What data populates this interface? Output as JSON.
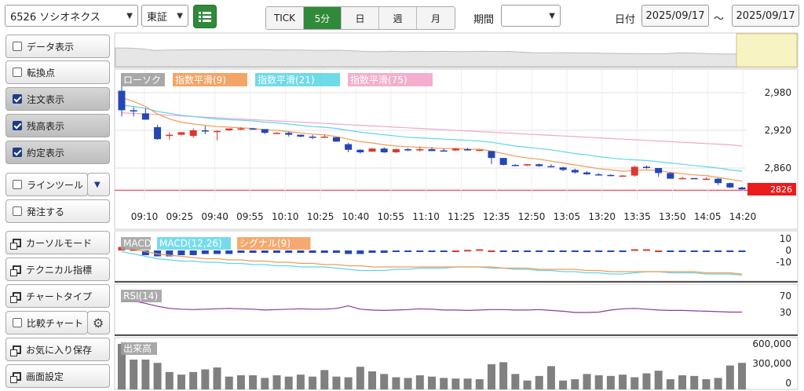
{
  "header": {
    "stock_select": "6526 ソシオネクス",
    "market_select": "東証",
    "list_icon": "list-icon",
    "period_tabs": [
      "TICK",
      "5分",
      "日",
      "週",
      "月"
    ],
    "active_tab": 1,
    "period_label": "期間",
    "period_select": "",
    "date_label": "日付",
    "date_from": "2025/09/17",
    "date_sep": "〜",
    "date_to": "2025/09/17"
  },
  "sidebar": {
    "data_display": "データ表示",
    "turning_point": "転換点",
    "order_display": "注文表示",
    "position_display": "残高表示",
    "execution_display": "約定表示",
    "line_tool": "ラインツール",
    "place_order": "発注する",
    "cursor_mode": "カーソルモード",
    "technical": "テクニカル指標",
    "chart_type": "チャートタイプ",
    "compare_chart": "比較チャート",
    "save_favorite": "お気に入り保存",
    "screen_settings": "画面設定"
  },
  "main_chart": {
    "legend": [
      "ローソク",
      "指数平滑(9)",
      "指数平滑(21)",
      "指数平滑(75)"
    ],
    "legend_colors": [
      "#9e9e9e",
      "#f39a57",
      "#5fd6e6",
      "#f2a6c8"
    ],
    "y_ticks": [
      "2,980",
      "2,920",
      "2,860"
    ],
    "last_price": "2826",
    "x_ticks": [
      "09:10",
      "09:25",
      "09:40",
      "09:55",
      "10:10",
      "10:25",
      "10:40",
      "10:55",
      "11:10",
      "11:25",
      "12:35",
      "12:50",
      "13:05",
      "13:20",
      "13:35",
      "13:50",
      "14:05",
      "14:20"
    ]
  },
  "macd": {
    "legend": [
      "MACD",
      "MACD(12,26)",
      "シグナル(9)"
    ],
    "y_ticks": [
      "10",
      "0",
      "-10"
    ]
  },
  "rsi": {
    "legend": "RSI(14)",
    "y_ticks": [
      "70",
      "30"
    ]
  },
  "volume": {
    "legend": "出来高",
    "y_ticks": [
      "600,000",
      "300,000",
      "0"
    ]
  },
  "chart_data": {
    "type": "candlestick",
    "candles": [
      [
        2983,
        2998,
        2942,
        2952
      ],
      [
        2952,
        2957,
        2942,
        2950
      ],
      [
        2947,
        2955,
        2937,
        2937
      ],
      [
        2925,
        2929,
        2905,
        2906
      ],
      [
        2911,
        2917,
        2905,
        2913
      ],
      [
        2913,
        2917,
        2912,
        2917
      ],
      [
        2911,
        2923,
        2908,
        2920
      ],
      [
        2920,
        2927,
        2914,
        2919
      ],
      [
        2919,
        2920,
        2904,
        2919
      ],
      [
        2920,
        2923,
        2919,
        2923
      ],
      [
        2923,
        2925,
        2920,
        2923
      ],
      [
        2923,
        2924,
        2921,
        2922
      ],
      [
        2922,
        2922,
        2914,
        2916
      ],
      [
        2916,
        2917,
        2915,
        2916
      ],
      [
        2916,
        2918,
        2910,
        2913
      ],
      [
        2913,
        2913,
        2909,
        2910
      ],
      [
        2910,
        2913,
        2906,
        2909
      ],
      [
        2909,
        2913,
        2908,
        2910
      ],
      [
        2909,
        2909,
        2902,
        2902
      ],
      [
        2898,
        2900,
        2885,
        2889
      ],
      [
        2889,
        2890,
        2883,
        2885
      ],
      [
        2886,
        2892,
        2886,
        2891
      ],
      [
        2891,
        2893,
        2884,
        2885
      ],
      [
        2885,
        2891,
        2884,
        2890
      ],
      [
        2890,
        2892,
        2887,
        2888
      ],
      [
        2888,
        2894,
        2886,
        2890
      ],
      [
        2890,
        2893,
        2887,
        2887
      ],
      [
        2888,
        2891,
        2887,
        2887
      ],
      [
        2888,
        2891,
        2887,
        2891
      ],
      [
        2890,
        2892,
        2888,
        2888
      ],
      [
        2888,
        2889,
        2887,
        2889
      ],
      [
        2887,
        2886,
        2866,
        2876
      ],
      [
        2876,
        2876,
        2864,
        2865
      ],
      [
        2865,
        2866,
        2863,
        2864
      ],
      [
        2864,
        2866,
        2863,
        2866
      ],
      [
        2866,
        2867,
        2862,
        2863
      ],
      [
        2863,
        2866,
        2861,
        2862
      ],
      [
        2861,
        2862,
        2855,
        2857
      ],
      [
        2857,
        2859,
        2851,
        2853
      ],
      [
        2853,
        2855,
        2849,
        2850
      ],
      [
        2850,
        2852,
        2848,
        2849
      ],
      [
        2849,
        2850,
        2847,
        2848
      ],
      [
        2848,
        2849,
        2846,
        2848
      ],
      [
        2848,
        2864,
        2846,
        2862
      ],
      [
        2862,
        2864,
        2859,
        2860
      ],
      [
        2860,
        2860,
        2846,
        2852
      ],
      [
        2852,
        2853,
        2843,
        2843
      ],
      [
        2843,
        2846,
        2842,
        2844
      ],
      [
        2844,
        2844,
        2843,
        2843
      ],
      [
        2843,
        2845,
        2842,
        2843
      ],
      [
        2843,
        2844,
        2833,
        2836
      ],
      [
        2836,
        2837,
        2828,
        2829
      ],
      [
        2829,
        2830,
        2825,
        2826
      ]
    ],
    "ema9": [
      2972,
      2966,
      2958,
      2946,
      2938,
      2933,
      2930,
      2928,
      2926,
      2925,
      2924,
      2923,
      2921,
      2920,
      2918,
      2916,
      2914,
      2913,
      2910,
      2906,
      2902,
      2900,
      2897,
      2895,
      2894,
      2893,
      2892,
      2891,
      2891,
      2890,
      2890,
      2887,
      2883,
      2879,
      2876,
      2874,
      2871,
      2868,
      2865,
      2862,
      2859,
      2857,
      2855,
      2856,
      2857,
      2856,
      2853,
      2851,
      2849,
      2848,
      2845,
      2842,
      2839
    ],
    "ema21": [
      2960,
      2958,
      2955,
      2950,
      2947,
      2944,
      2942,
      2940,
      2938,
      2937,
      2936,
      2935,
      2933,
      2932,
      2930,
      2928,
      2926,
      2925,
      2923,
      2920,
      2917,
      2915,
      2913,
      2911,
      2909,
      2908,
      2907,
      2906,
      2905,
      2904,
      2903,
      2901,
      2898,
      2895,
      2893,
      2891,
      2889,
      2886,
      2883,
      2881,
      2878,
      2876,
      2874,
      2873,
      2872,
      2870,
      2868,
      2866,
      2864,
      2862,
      2860,
      2857,
      2855
    ],
    "ema75": [
      2948,
      2947,
      2946,
      2945,
      2944,
      2943,
      2942,
      2941,
      2940,
      2939,
      2938,
      2937,
      2936,
      2935,
      2934,
      2933,
      2932,
      2931,
      2930,
      2929,
      2928,
      2927,
      2926,
      2925,
      2924,
      2923,
      2922,
      2921,
      2920,
      2919,
      2918,
      2917,
      2916,
      2915,
      2914,
      2913,
      2912,
      2911,
      2910,
      2909,
      2908,
      2907,
      2906,
      2905,
      2904,
      2903,
      2902,
      2901,
      2900,
      2899,
      2898,
      2897,
      2895
    ],
    "macd_hist": [
      3,
      1,
      -4,
      -5,
      -5,
      -4,
      -4,
      -3,
      -3,
      -3,
      -2,
      -2,
      -2,
      -2,
      -2,
      -2,
      -2,
      -2,
      -2,
      -3,
      -3,
      -2,
      -2,
      -1,
      -1,
      -1,
      -1,
      -1,
      0,
      0.5,
      1,
      0,
      -1,
      -1,
      -1,
      -1,
      -1,
      -1,
      -1,
      -1,
      -1,
      -1,
      -1,
      1,
      1,
      0,
      -1,
      -1,
      -1,
      -1,
      -1,
      -1,
      -1
    ],
    "macd_line": [
      -1,
      -3,
      -5,
      -7,
      -8,
      -9,
      -9,
      -10,
      -10,
      -11,
      -11,
      -12,
      -12,
      -13,
      -13,
      -14,
      -14,
      -14,
      -15,
      -16,
      -17,
      -17,
      -17,
      -16,
      -16,
      -15,
      -15,
      -15,
      -14,
      -14,
      -14,
      -15,
      -15,
      -16,
      -16,
      -17,
      -17,
      -18,
      -18,
      -19,
      -19,
      -20,
      -20,
      -19,
      -18,
      -18,
      -19,
      -19,
      -19,
      -20,
      -20,
      -20,
      -21
    ],
    "signal_line": [
      2,
      1,
      -1,
      -3,
      -4,
      -5,
      -6,
      -7,
      -7,
      -8,
      -8,
      -9,
      -9,
      -10,
      -10,
      -11,
      -11,
      -12,
      -12,
      -13,
      -13,
      -14,
      -14,
      -14,
      -14,
      -14,
      -14,
      -14,
      -14,
      -14,
      -14,
      -14,
      -15,
      -15,
      -15,
      -16,
      -16,
      -16,
      -16,
      -17,
      -17,
      -18,
      -18,
      -18,
      -18,
      -18,
      -18,
      -18,
      -18,
      -19,
      -19,
      -19,
      -20
    ],
    "rsi": [
      58,
      58,
      52,
      45,
      40,
      38,
      37,
      38,
      39,
      40,
      39,
      38,
      36,
      37,
      38,
      39,
      38,
      38,
      40,
      46,
      38,
      36,
      35,
      36,
      37,
      39,
      38,
      36,
      36,
      35,
      36,
      37,
      37,
      36,
      36,
      37,
      35,
      33,
      30,
      30,
      31,
      36,
      39,
      40,
      38,
      36,
      35,
      35,
      34,
      33,
      32,
      31,
      31
    ],
    "volume": [
      600000,
      360000,
      360000,
      310000,
      170000,
      130000,
      170000,
      210000,
      240000,
      100000,
      120000,
      120000,
      80000,
      120000,
      100000,
      130000,
      100000,
      200000,
      100000,
      90000,
      250000,
      180000,
      140000,
      90000,
      80000,
      120000,
      100000,
      80000,
      70000,
      70000,
      60000,
      290000,
      320000,
      140000,
      40000,
      110000,
      260000,
      40000,
      60000,
      140000,
      120000,
      110000,
      130000,
      90000,
      150000,
      190000,
      60000,
      120000,
      110000,
      60000,
      80000,
      270000,
      310000
    ]
  }
}
